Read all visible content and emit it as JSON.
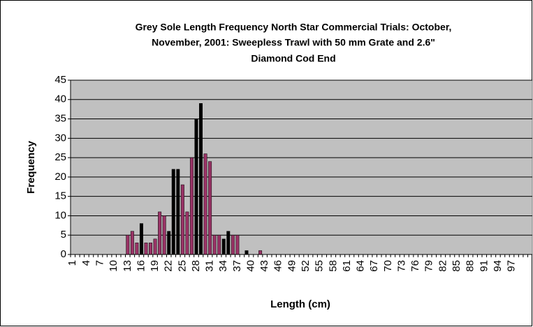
{
  "chart_data": {
    "type": "bar",
    "title": [
      "Grey Sole Length Frequency North Star Commercial Trials: October,",
      "November, 2001: Sweepless Trawl with 50 mm Grate and 2.6\"",
      "Diamond Cod End"
    ],
    "x_label": "Length (cm)",
    "y_label": "Frequency",
    "categories": [
      1,
      null,
      null,
      4,
      null,
      null,
      7,
      null,
      null,
      10,
      null,
      null,
      13,
      null,
      null,
      16,
      null,
      null,
      19,
      null,
      null,
      22,
      null,
      null,
      25,
      null,
      null,
      28,
      null,
      null,
      31,
      null,
      null,
      34,
      null,
      null,
      37,
      null,
      null,
      40,
      null,
      null,
      43,
      null,
      null,
      46,
      null,
      null,
      49,
      null,
      null,
      52,
      null,
      null,
      55,
      null,
      null,
      58,
      null,
      null,
      61,
      null,
      null,
      64,
      null,
      null,
      67,
      null,
      null,
      70,
      null,
      null,
      73,
      null,
      null,
      76,
      null,
      null,
      79,
      null,
      null,
      82,
      null,
      null,
      85,
      null,
      null,
      88,
      null,
      null,
      91,
      null,
      null,
      94,
      null,
      null,
      97,
      null,
      null,
      null,
      null
    ],
    "values": [
      0,
      0,
      0,
      0,
      0,
      0,
      0,
      0,
      0,
      0,
      0,
      0,
      5,
      6,
      3,
      8,
      3,
      3,
      4,
      11,
      10,
      6,
      22,
      22,
      18,
      11,
      25,
      35,
      39,
      26,
      24,
      5,
      5,
      4,
      6,
      5,
      5,
      0,
      1,
      0,
      0,
      1,
      0,
      0,
      0,
      0,
      0,
      0,
      0,
      0,
      0,
      0,
      0,
      0,
      0,
      0,
      0,
      0,
      0,
      0,
      0,
      0,
      0,
      0,
      0,
      0,
      0,
      0,
      0,
      0,
      0,
      0,
      0,
      0,
      0,
      0,
      0,
      0,
      0,
      0,
      0,
      0,
      0,
      0,
      0,
      0,
      0,
      0,
      0,
      0,
      0,
      0,
      0,
      0,
      0,
      0,
      0,
      0,
      0,
      0,
      0
    ],
    "colors": [
      "#936",
      "#936",
      "#936",
      "#936",
      "#936",
      "#936",
      "#936",
      "#936",
      "#936",
      "#936",
      "#936",
      "#936",
      "#936",
      "#936",
      "#936",
      "#000",
      "#936",
      "#936",
      "#936",
      "#936",
      "#936",
      "#000",
      "#000",
      "#000",
      "#936",
      "#936",
      "#936",
      "#000",
      "#000",
      "#936",
      "#936",
      "#936",
      "#936",
      "#000",
      "#000",
      "#936",
      "#936",
      "#936",
      "#000",
      "#936",
      "#936",
      "#936",
      "#936",
      "#936",
      "#936",
      "#936",
      "#936",
      "#936",
      "#936",
      "#936",
      "#936",
      "#936",
      "#936",
      "#936",
      "#936",
      "#936",
      "#936",
      "#936",
      "#936",
      "#936",
      "#936",
      "#936",
      "#936",
      "#936",
      "#936",
      "#936",
      "#936",
      "#936",
      "#936",
      "#936",
      "#936",
      "#936",
      "#936",
      "#936",
      "#936",
      "#936",
      "#936",
      "#936",
      "#936",
      "#936",
      "#936",
      "#936",
      "#936",
      "#936",
      "#936",
      "#936",
      "#936",
      "#936",
      "#936",
      "#936",
      "#936",
      "#936",
      "#936",
      "#936",
      "#936",
      "#936",
      "#936",
      "#936",
      "#936",
      "#936",
      "#936"
    ],
    "ylim": [
      0,
      45
    ],
    "yticks": [
      0,
      5,
      10,
      15,
      20,
      25,
      30,
      35,
      40,
      45
    ],
    "grid": true,
    "plot_background": "#c0c0c0"
  }
}
